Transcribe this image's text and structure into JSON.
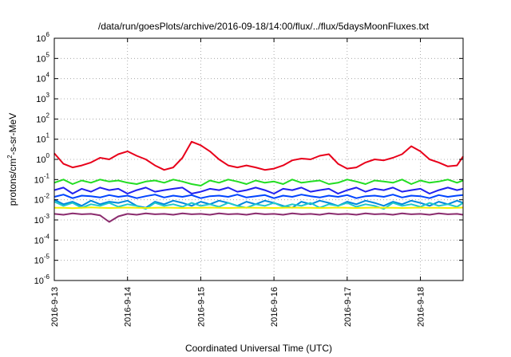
{
  "chart_data": {
    "type": "line",
    "title": "/data/run/goesPlots/archive/2016-09-18/14:00/flux/../flux/5daysMoonFluxes.txt",
    "xlabel": "Coordinated Universal Time (UTC)",
    "ylabel": "protons/cm2-s-sr-MeV",
    "ylabel_parts": {
      "base": "protons/cm",
      "sup": "2",
      "rest": "-s-sr-MeV"
    },
    "y_scale": "log",
    "ylim": [
      1e-06,
      1000000.0
    ],
    "y_tick_exponents": [
      -6,
      -5,
      -4,
      -3,
      -2,
      -1,
      0,
      1,
      2,
      3,
      4,
      5,
      6
    ],
    "y_tick_base": "10",
    "xlim": [
      "2016-09-13",
      "2016-09-18 14:00"
    ],
    "x_tick_labels": [
      "2016-9-13",
      "2016-9-14",
      "2016-9-15",
      "2016-9-16",
      "2016-9-17",
      "2016-9-18"
    ],
    "grid": true,
    "x": [
      0,
      0.125,
      0.25,
      0.375,
      0.5,
      0.625,
      0.75,
      0.875,
      1,
      1.125,
      1.25,
      1.375,
      1.5,
      1.625,
      1.75,
      1.875,
      2,
      2.125,
      2.25,
      2.375,
      2.5,
      2.625,
      2.75,
      2.875,
      3,
      3.125,
      3.25,
      3.375,
      3.5,
      3.625,
      3.75,
      3.875,
      4,
      4.125,
      4.25,
      4.375,
      4.5,
      4.625,
      4.75,
      4.875,
      5,
      5.125,
      5.25,
      5.375,
      5.5,
      5.583
    ],
    "x_unit": "days since 2016-09-13 00:00 UTC",
    "series": [
      {
        "color": "#e8001a",
        "values": [
          2.0,
          0.6,
          0.4,
          0.5,
          0.7,
          1.2,
          1.0,
          1.8,
          2.5,
          1.5,
          1.0,
          0.5,
          0.3,
          0.4,
          1.2,
          7.5,
          5.0,
          2.5,
          1.0,
          0.5,
          0.4,
          0.5,
          0.4,
          0.3,
          0.35,
          0.5,
          0.9,
          1.1,
          1.0,
          1.5,
          1.8,
          0.6,
          0.35,
          0.4,
          0.7,
          1.0,
          0.9,
          1.2,
          1.8,
          4.5,
          2.5,
          1.0,
          0.7,
          0.45,
          0.5,
          1.4
        ]
      },
      {
        "color": "#22dd22",
        "values": [
          0.07,
          0.1,
          0.06,
          0.09,
          0.07,
          0.1,
          0.08,
          0.09,
          0.07,
          0.06,
          0.08,
          0.09,
          0.07,
          0.1,
          0.08,
          0.06,
          0.05,
          0.09,
          0.07,
          0.1,
          0.08,
          0.06,
          0.09,
          0.07,
          0.08,
          0.06,
          0.1,
          0.07,
          0.08,
          0.09,
          0.06,
          0.07,
          0.1,
          0.08,
          0.06,
          0.09,
          0.08,
          0.07,
          0.1,
          0.06,
          0.09,
          0.07,
          0.08,
          0.1,
          0.07,
          0.09
        ]
      },
      {
        "color": "#2020ee",
        "values": [
          0.03,
          0.04,
          0.02,
          0.035,
          0.025,
          0.04,
          0.03,
          0.035,
          0.02,
          0.03,
          0.04,
          0.025,
          0.03,
          0.035,
          0.04,
          0.02,
          0.025,
          0.035,
          0.03,
          0.04,
          0.025,
          0.03,
          0.04,
          0.03,
          0.02,
          0.035,
          0.03,
          0.04,
          0.025,
          0.03,
          0.035,
          0.02,
          0.03,
          0.04,
          0.025,
          0.035,
          0.03,
          0.04,
          0.025,
          0.03,
          0.035,
          0.02,
          0.03,
          0.04,
          0.03,
          0.035
        ]
      },
      {
        "color": "#0044ff",
        "values": [
          0.014,
          0.018,
          0.012,
          0.016,
          0.015,
          0.013,
          0.017,
          0.014,
          0.016,
          0.012,
          0.015,
          0.018,
          0.013,
          0.016,
          0.014,
          0.017,
          0.012,
          0.015,
          0.016,
          0.014,
          0.018,
          0.013,
          0.015,
          0.017,
          0.012,
          0.016,
          0.014,
          0.018,
          0.015,
          0.013,
          0.016,
          0.014,
          0.017,
          0.012,
          0.015,
          0.016,
          0.014,
          0.018,
          0.013,
          0.016,
          0.015,
          0.012,
          0.017,
          0.014,
          0.016,
          0.017
        ]
      },
      {
        "color": "#0088dd",
        "values": [
          0.01,
          0.006,
          0.008,
          0.005,
          0.009,
          0.006,
          0.008,
          0.007,
          0.009,
          0.005,
          0.004,
          0.008,
          0.006,
          0.009,
          0.007,
          0.005,
          0.008,
          0.006,
          0.009,
          0.007,
          0.005,
          0.008,
          0.006,
          0.009,
          0.007,
          0.005,
          0.004,
          0.008,
          0.006,
          0.009,
          0.007,
          0.005,
          0.008,
          0.006,
          0.009,
          0.007,
          0.005,
          0.008,
          0.006,
          0.009,
          0.007,
          0.005,
          0.008,
          0.006,
          0.009,
          0.007
        ]
      },
      {
        "color": "#20c8c8",
        "values": [
          0.008,
          0.005,
          0.007,
          0.004,
          0.006,
          0.005,
          0.007,
          0.0045,
          0.006,
          0.005,
          0.0035,
          0.007,
          0.005,
          0.006,
          0.0045,
          0.007,
          0.005,
          0.006,
          0.0045,
          0.007,
          0.005,
          0.004,
          0.006,
          0.005,
          0.007,
          0.0045,
          0.006,
          0.005,
          0.007,
          0.004,
          0.006,
          0.005,
          0.007,
          0.0045,
          0.006,
          0.005,
          0.0035,
          0.007,
          0.005,
          0.006,
          0.0045,
          0.007,
          0.005,
          0.006,
          0.0045,
          0.007
        ]
      },
      {
        "color": "#f0f000",
        "values": [
          0.004,
          0.004,
          0.0038,
          0.004,
          0.0042,
          0.004,
          0.0039,
          0.004,
          0.0041,
          0.004,
          0.0039,
          0.004,
          0.0041,
          0.004,
          0.0039,
          0.004,
          0.004,
          0.0041,
          0.004,
          0.0039,
          0.004,
          0.0041,
          0.004,
          0.004,
          0.0039,
          0.004,
          0.0041,
          0.004,
          0.004,
          0.0039,
          0.004,
          0.0041,
          0.004,
          0.0039,
          0.004,
          0.0041,
          0.004,
          0.004,
          0.0039,
          0.004,
          0.0041,
          0.004,
          0.004,
          0.0039,
          0.004,
          0.0041
        ]
      },
      {
        "color": "#8b2c6e",
        "values": [
          0.002,
          0.0018,
          0.0021,
          0.0019,
          0.002,
          0.0017,
          0.0008,
          0.0015,
          0.002,
          0.0018,
          0.0021,
          0.0019,
          0.002,
          0.0018,
          0.0021,
          0.0019,
          0.002,
          0.0018,
          0.0021,
          0.0019,
          0.002,
          0.0018,
          0.0021,
          0.0019,
          0.002,
          0.0018,
          0.0021,
          0.0019,
          0.002,
          0.0018,
          0.0021,
          0.0019,
          0.002,
          0.0018,
          0.0021,
          0.0019,
          0.002,
          0.0018,
          0.0021,
          0.0019,
          0.002,
          0.0018,
          0.0021,
          0.0019,
          0.002,
          0.0018
        ]
      }
    ]
  }
}
